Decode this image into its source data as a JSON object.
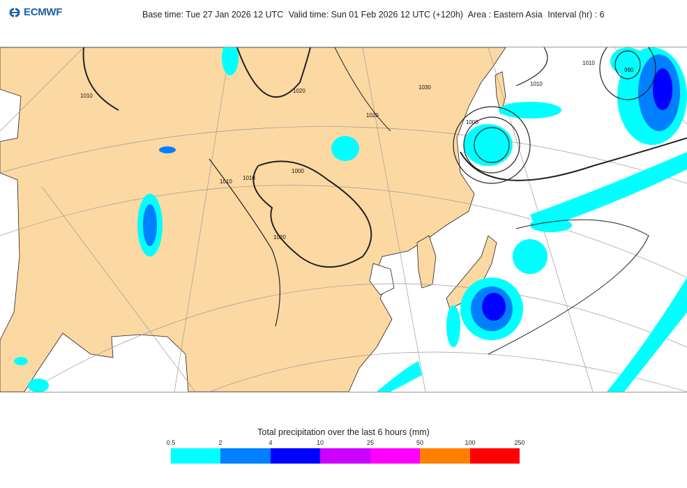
{
  "logo": {
    "text": "ECMWF"
  },
  "header": {
    "base_time": "Base time: Tue 27 Jan 2026 12 UTC",
    "valid_time": "Valid time: Sun 01 Feb 2026 12 UTC (+120h)",
    "area": "Area : Eastern Asia",
    "interval": "Interval (hr) : 6"
  },
  "map": {
    "land_color": "#fcd9a2",
    "sea_color": "#ffffff",
    "contour_labels": [
      "1010",
      "1020",
      "1030",
      "1020",
      "1010",
      "1000",
      "1010",
      "1020",
      "1010",
      "1000",
      "990",
      "1010"
    ]
  },
  "legend": {
    "title": "Total precipitation over the last 6 hours (mm)",
    "ticks": [
      "0.5",
      "2",
      "4",
      "10",
      "25",
      "50",
      "100",
      "250"
    ],
    "colors": [
      "#00ffff",
      "#0080ff",
      "#0000ff",
      "#cc00ff",
      "#ff00ff",
      "#ff8000",
      "#ff0000"
    ]
  }
}
